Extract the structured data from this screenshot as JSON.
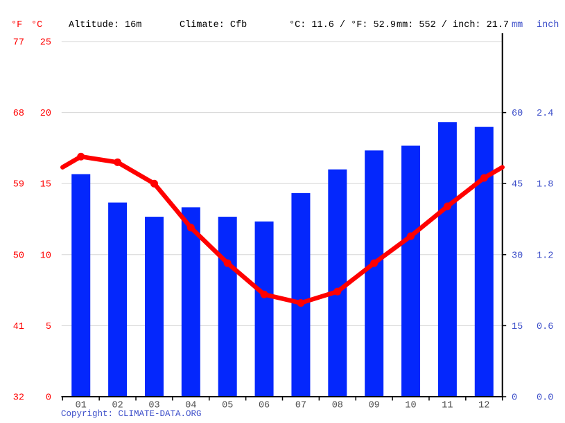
{
  "header": {
    "f_unit": "°F",
    "c_unit": "°C",
    "altitude": "Altitude: 16m",
    "climate": "Climate: Cfb",
    "temp_summary": "°C: 11.6 / °F: 52.9",
    "precip_summary": "mm: 552 / inch: 21.7",
    "mm_unit": "mm",
    "inch_unit": "inch"
  },
  "left_axis": {
    "fahrenheit": [
      "77",
      "68",
      "59",
      "50",
      "41",
      "32"
    ],
    "celsius": [
      "25",
      "20",
      "15",
      "10",
      "5",
      "0"
    ]
  },
  "right_axis": {
    "mm": [
      "60",
      "45",
      "30",
      "15",
      "0"
    ],
    "inch": [
      "2.4",
      "1.8",
      "1.2",
      "0.6",
      "0.0"
    ]
  },
  "copyright": "Copyright: CLIMATE-DATA.ORG",
  "colors": {
    "temperature_red": "#ff0000",
    "precipitation_blue": "#0427fc",
    "axis_text_red": "#ff0000",
    "axis_text_blue": "#3c4ec9",
    "month_label_gray": "#4d4d4d",
    "gridline_gray": "#d6d6d6",
    "axis_black": "#000000"
  },
  "chart_data": [
    {
      "type": "bar",
      "title": "Monthly precipitation",
      "categories": [
        "01",
        "02",
        "03",
        "04",
        "05",
        "06",
        "07",
        "08",
        "09",
        "10",
        "11",
        "12"
      ],
      "values": [
        47,
        41,
        38,
        40,
        38,
        37,
        43,
        48,
        52,
        53,
        58,
        57
      ],
      "xlabel": "month",
      "ylabel": "mm",
      "ylim": [
        0,
        75
      ],
      "axis_side": "right",
      "tick_step_mm": 15,
      "grid": true,
      "annual_total_mm": 552
    },
    {
      "type": "line",
      "title": "Average temperature",
      "categories": [
        "01",
        "02",
        "03",
        "04",
        "05",
        "06",
        "07",
        "08",
        "09",
        "10",
        "11",
        "12"
      ],
      "values": [
        16.9,
        16.5,
        15.0,
        11.9,
        9.4,
        7.2,
        6.6,
        7.4,
        9.4,
        11.3,
        13.4,
        15.4
      ],
      "xlabel": "month",
      "ylabel": "°C",
      "ylim": [
        0,
        25
      ],
      "axis_side": "left",
      "tick_step_c": 5,
      "grid": true,
      "annual_mean_c": 11.6,
      "annual_mean_f": 52.9
    }
  ]
}
